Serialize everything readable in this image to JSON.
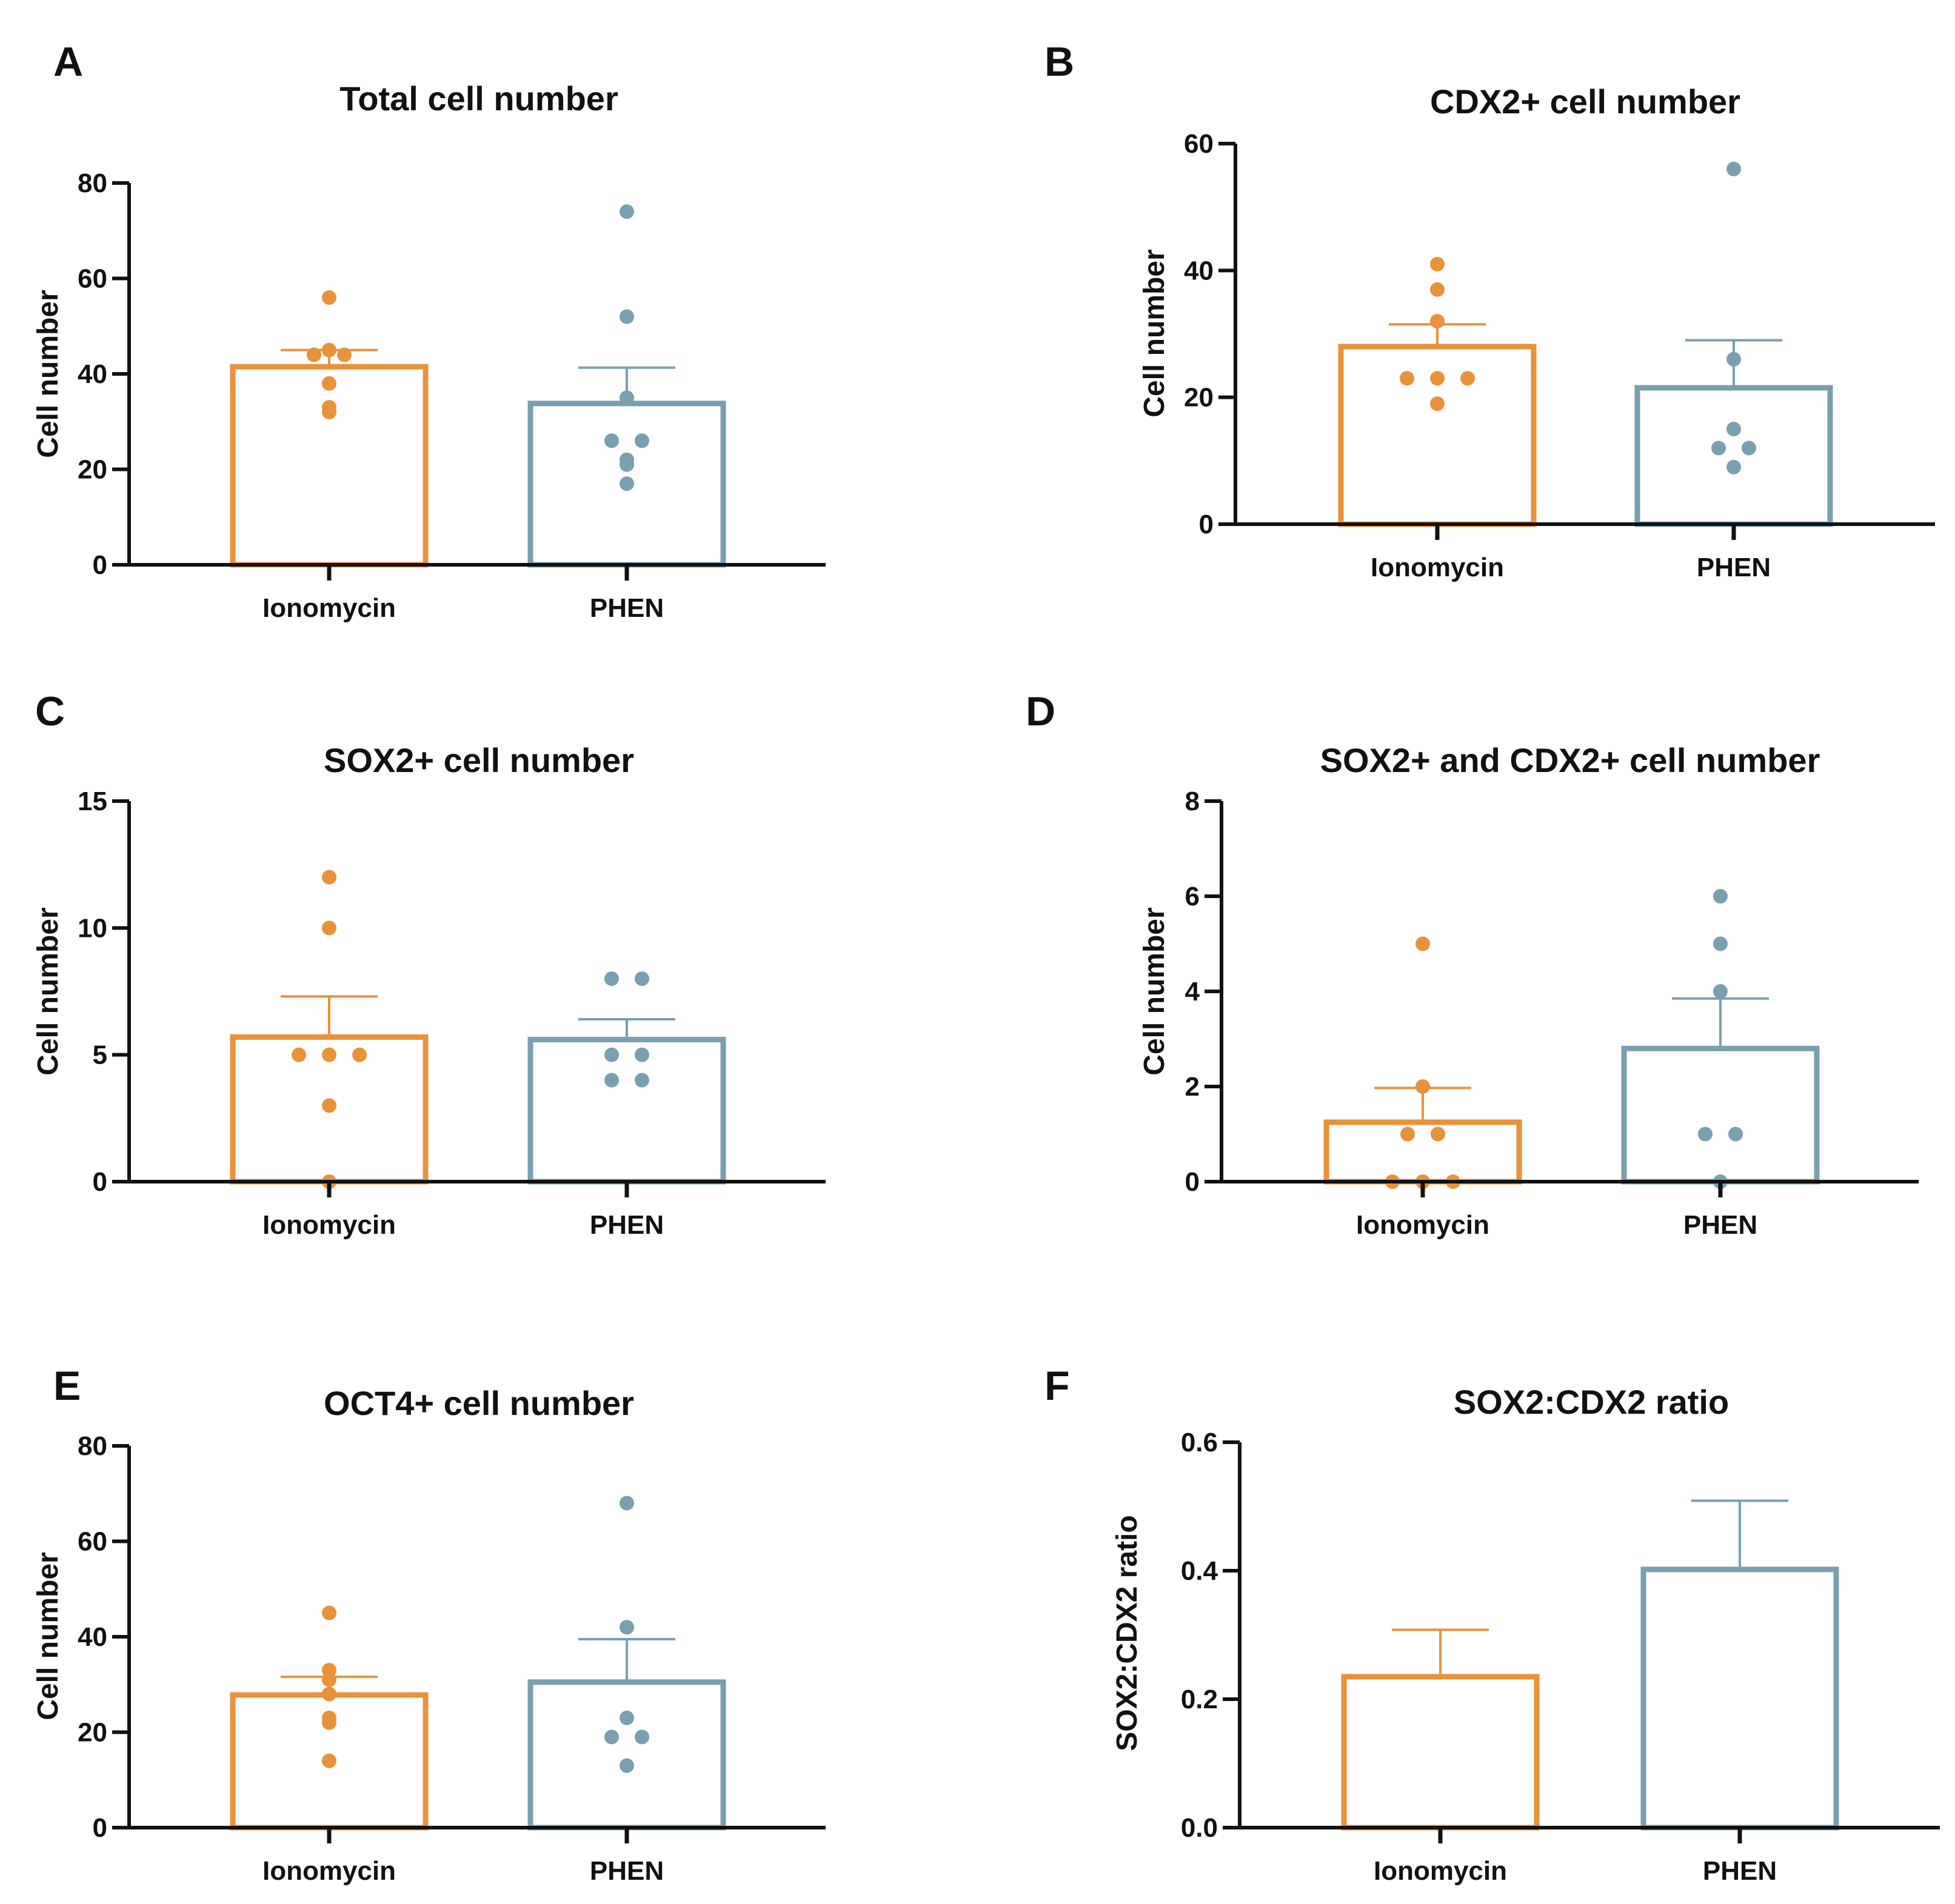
{
  "colors": {
    "ionomycin": "#E8923A",
    "phen": "#7A9FAE",
    "axis": "#111111"
  },
  "chart_data": [
    {
      "panel": "A",
      "type": "bar",
      "title": "Total cell number",
      "ylabel": "Cell number",
      "categories": [
        "Ionomycin",
        "PHEN"
      ],
      "ylim": [
        0,
        80
      ],
      "yticks": [
        0,
        20,
        40,
        60,
        80
      ],
      "series": [
        {
          "name": "Ionomycin",
          "mean": 41.5,
          "sem": 3.5,
          "points": [
            56,
            45,
            44,
            44,
            38,
            33,
            32
          ]
        },
        {
          "name": "PHEN",
          "mean": 33.8,
          "sem": 7.5,
          "points": [
            74,
            52,
            35,
            26,
            26,
            22,
            21,
            17
          ]
        }
      ]
    },
    {
      "panel": "B",
      "type": "bar",
      "title": "CDX2+ cell number",
      "ylabel": "Cell number",
      "categories": [
        "Ionomycin",
        "PHEN"
      ],
      "ylim": [
        0,
        60
      ],
      "yticks": [
        0,
        20,
        40,
        60
      ],
      "series": [
        {
          "name": "Ionomycin",
          "mean": 28,
          "sem": 3.5,
          "points": [
            41,
            37,
            32,
            23,
            23,
            23,
            19
          ]
        },
        {
          "name": "PHEN",
          "mean": 21.5,
          "sem": 7.5,
          "points": [
            56,
            26,
            15,
            12,
            12,
            9
          ]
        }
      ]
    },
    {
      "panel": "C",
      "type": "bar",
      "title": "SOX2+ cell number",
      "ylabel": "Cell number",
      "categories": [
        "Ionomycin",
        "PHEN"
      ],
      "ylim": [
        0,
        15
      ],
      "yticks": [
        0,
        5,
        10,
        15
      ],
      "series": [
        {
          "name": "Ionomycin",
          "mean": 5.7,
          "sem": 1.6,
          "points": [
            12,
            10,
            5,
            5,
            5,
            3,
            0
          ]
        },
        {
          "name": "PHEN",
          "mean": 5.6,
          "sem": 0.8,
          "points": [
            8,
            8,
            5,
            5,
            4,
            4
          ]
        }
      ]
    },
    {
      "panel": "D",
      "type": "bar",
      "title": "SOX2+ and CDX2+ cell number",
      "ylabel": "Cell number",
      "categories": [
        "Ionomycin",
        "PHEN"
      ],
      "ylim": [
        0,
        8
      ],
      "yticks": [
        0,
        2,
        4,
        6,
        8
      ],
      "series": [
        {
          "name": "Ionomycin",
          "mean": 1.25,
          "sem": 0.72,
          "points": [
            5,
            2,
            1,
            1,
            0,
            0,
            0
          ]
        },
        {
          "name": "PHEN",
          "mean": 2.8,
          "sem": 1.05,
          "points": [
            6,
            5,
            4,
            1,
            1,
            0
          ]
        }
      ]
    },
    {
      "panel": "E",
      "type": "bar",
      "title": "OCT4+ cell number",
      "ylabel": "Cell number",
      "categories": [
        "Ionomycin",
        "PHEN"
      ],
      "ylim": [
        0,
        80
      ],
      "yticks": [
        0,
        20,
        40,
        60,
        80
      ],
      "series": [
        {
          "name": "Ionomycin",
          "mean": 27.8,
          "sem": 3.8,
          "points": [
            45,
            33,
            31,
            28,
            23,
            22,
            14
          ]
        },
        {
          "name": "PHEN",
          "mean": 30.5,
          "sem": 9,
          "points": [
            68,
            42,
            23,
            19,
            19,
            13
          ]
        }
      ]
    },
    {
      "panel": "F",
      "type": "bar",
      "title": "SOX2:CDX2 ratio",
      "ylabel": "SOX2:CDX2 ratio",
      "categories": [
        "Ionomycin",
        "PHEN"
      ],
      "ylim": [
        0,
        0.6
      ],
      "yticks": [
        "0.0",
        "0.2",
        "0.4",
        "0.6"
      ],
      "series": [
        {
          "name": "Ionomycin",
          "mean": 0.235,
          "sem": 0.073,
          "points": []
        },
        {
          "name": "PHEN",
          "mean": 0.402,
          "sem": 0.107,
          "points": []
        }
      ]
    }
  ]
}
